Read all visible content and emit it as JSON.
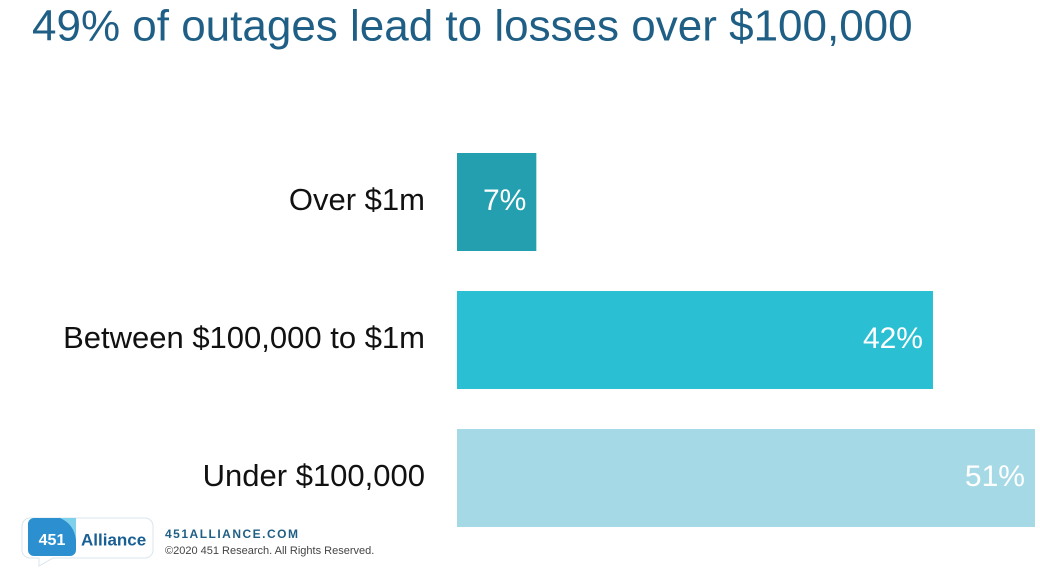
{
  "chart_data": {
    "type": "bar",
    "orientation": "horizontal",
    "title": "49% of outages lead to losses over $100,000",
    "categories": [
      "Over $1m",
      "Between $100,000 to $1m",
      "Under $100,000"
    ],
    "values": [
      7,
      42,
      51
    ],
    "value_labels": [
      "7%",
      "42%",
      "51%"
    ],
    "colors": [
      "#239fb0",
      "#2bbfd4",
      "#a6d9e6"
    ]
  },
  "footer": {
    "logo_number": "451",
    "logo_text": "Alliance",
    "website": "451ALLIANCE.COM",
    "copyright": "©2020 451 Research. All Rights Reserved."
  }
}
